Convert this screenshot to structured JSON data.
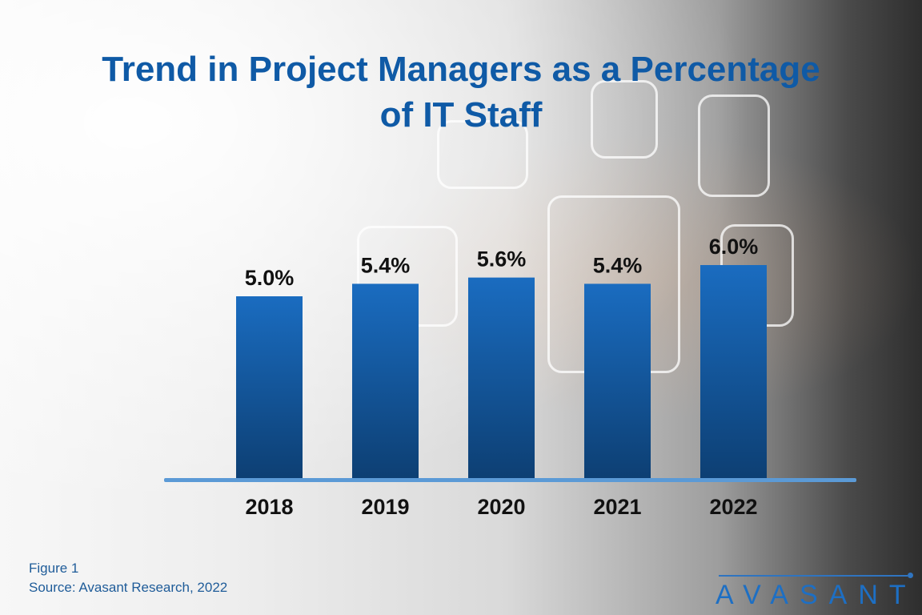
{
  "chart_data": {
    "type": "bar",
    "title": "Trend in Project Managers as a Percentage of IT Staff",
    "title_lines": [
      "Trend in Project Managers as a Percentage",
      "of IT Staff"
    ],
    "categories": [
      "2018",
      "2019",
      "2020",
      "2021",
      "2022"
    ],
    "values": [
      5.0,
      5.4,
      5.6,
      5.4,
      6.0
    ],
    "data_labels": [
      "5.0%",
      "5.4%",
      "5.6%",
      "5.4%",
      "6.0%"
    ],
    "xlabel": "",
    "ylabel": "",
    "grid": false,
    "legend": "none",
    "colors": {
      "bar_top": "#1a6cc0",
      "bar_bottom": "#0d3f73",
      "baseline": "#5b9ad6",
      "title": "#0f5aa6"
    }
  },
  "footer": {
    "figure": "Figure 1",
    "source": "Source: Avasant Research, 2022"
  },
  "logo": {
    "text": "AVASANT"
  }
}
